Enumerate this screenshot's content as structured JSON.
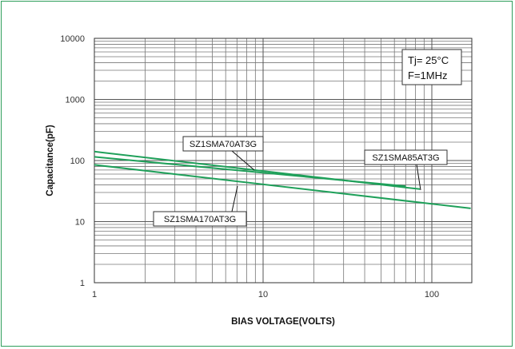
{
  "chart_data": {
    "type": "line",
    "xlabel": "BIAS VOLTAGE(VOLTS)",
    "ylabel": "Capacitance(pF)",
    "x_scale": "log",
    "y_scale": "log",
    "xlim": [
      1,
      200
    ],
    "ylim": [
      1,
      10000
    ],
    "x_ticks": [
      {
        "value": 1,
        "label": "1"
      },
      {
        "value": 10,
        "label": "10"
      },
      {
        "value": 100,
        "label": "100"
      }
    ],
    "y_ticks": [
      {
        "value": 1,
        "label": "1"
      },
      {
        "value": 10,
        "label": "10"
      },
      {
        "value": 100,
        "label": "100"
      },
      {
        "value": 1000,
        "label": "1000"
      },
      {
        "value": 10000,
        "label": "10000"
      }
    ],
    "grid": true,
    "conditions": [
      "Tj= 25°C",
      "F=1MHz"
    ],
    "series": [
      {
        "name": "SZ1SMA70AT3G",
        "color": "#1fa05a",
        "x": [
          1,
          70
        ],
        "y": [
          115,
          38
        ]
      },
      {
        "name": "SZ1SMA85AT3G",
        "color": "#1fa05a",
        "x": [
          1,
          85
        ],
        "y": [
          140,
          34
        ]
      },
      {
        "name": "SZ1SMA170AT3G",
        "color": "#1fa05a",
        "x": [
          1,
          170
        ],
        "y": [
          85,
          16.5
        ]
      }
    ],
    "annotations": [
      {
        "text": "SZ1SMA70AT3G",
        "series": 0
      },
      {
        "text": "SZ1SMA85AT3G",
        "series": 1
      },
      {
        "text": "SZ1SMA170AT3G",
        "series": 2
      }
    ]
  }
}
